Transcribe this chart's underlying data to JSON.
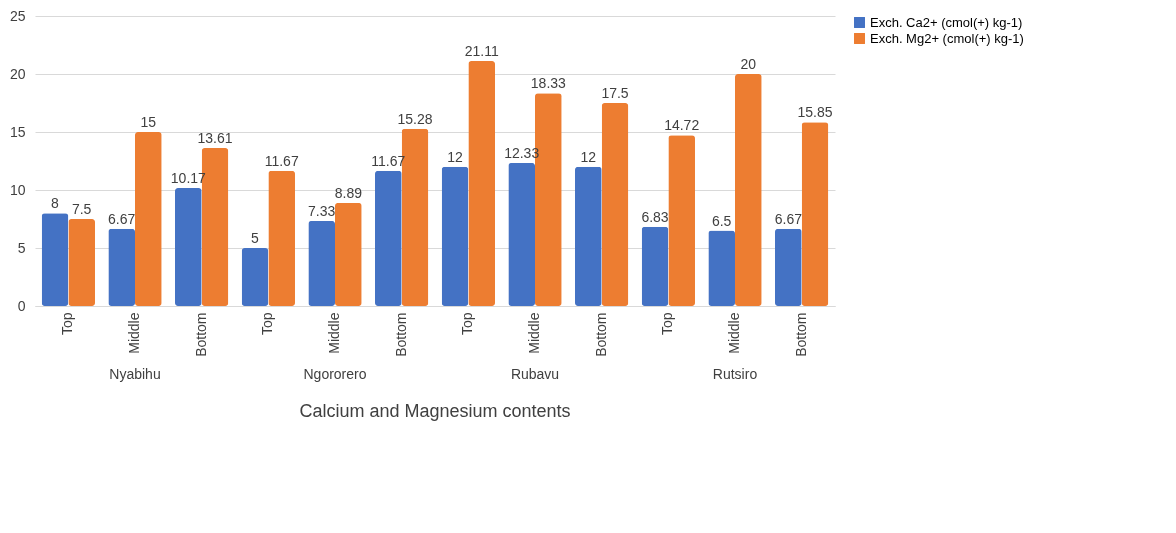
{
  "chart_data": {
    "type": "bar",
    "xlabel": "Calcium and Magnesium contents",
    "categories": [
      "Top",
      "Middle",
      "Bottom",
      "Top",
      "Middle",
      "Bottom",
      "Top",
      "Middle",
      "Bottom",
      "Top",
      "Middle",
      "Bottom"
    ],
    "annotations": [
      "Nyabihu",
      "Ngororero",
      "Rubavu",
      "Rutsiro"
    ],
    "series": [
      {
        "name": "Exch. Ca2+ (cmol(+) kg-1)",
        "color": "#4472c4",
        "values": [
          8,
          6.67,
          10.17,
          5,
          7.33,
          11.67,
          12,
          12.33,
          12,
          6.83,
          6.5,
          6.67
        ]
      },
      {
        "name": "Exch. Mg2+ (cmol(+) kg-1)",
        "color": "#ed7d31",
        "values": [
          7.5,
          15,
          13.61,
          11.67,
          8.89,
          15.28,
          21.11,
          18.33,
          17.5,
          14.72,
          20,
          15.85
        ]
      }
    ],
    "ylim": [
      0,
      25
    ],
    "yticks": [
      0,
      5,
      10,
      15,
      20,
      25
    ],
    "grid": "y",
    "legend": "right",
    "data_labels": true
  }
}
